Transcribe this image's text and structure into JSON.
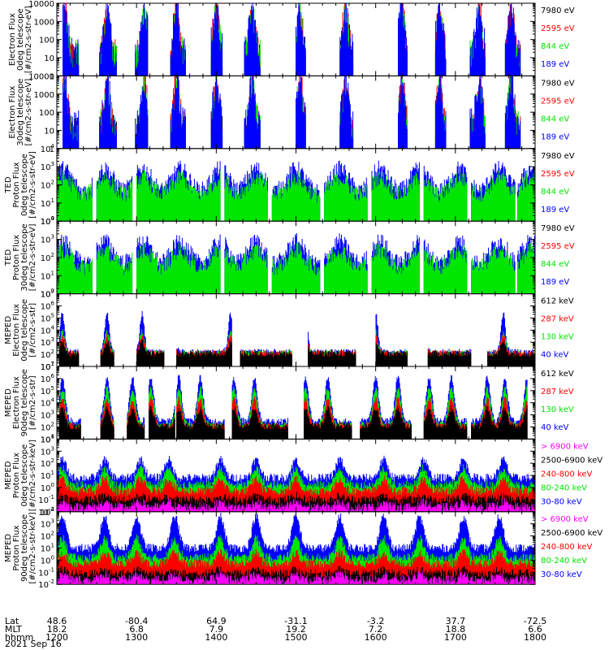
{
  "colors": {
    "blue": "#0000ff",
    "red": "#ff0000",
    "green": "#00e600",
    "black": "#000000",
    "magenta": "#ff00ff"
  },
  "chart_data": {
    "type": "line",
    "date": "2021 Sep 16",
    "time_axis": {
      "row_labels": [
        "Lat",
        "MLT",
        "hhmm"
      ],
      "ticks": [
        {
          "time": "1200",
          "lat": "48.6",
          "mlt": "18.2"
        },
        {
          "time": "1300",
          "lat": "-80.4",
          "mlt": "6.8"
        },
        {
          "time": "1400",
          "lat": "64.9",
          "mlt": "7.9"
        },
        {
          "time": "1500",
          "lat": "-31.1",
          "mlt": "19.2"
        },
        {
          "time": "1600",
          "lat": "-3.2",
          "mlt": "7.2"
        },
        {
          "time": "1700",
          "lat": "37.7",
          "mlt": "18.8"
        },
        {
          "time": "1800",
          "lat": "-72.5",
          "mlt": "6.6"
        }
      ]
    },
    "panels": [
      {
        "ylabel": [
          "Electron Flux",
          "0deg telescope",
          "[#/cm2-s-str-eV]"
        ],
        "ylim": [
          1,
          10000
        ],
        "decades": 4,
        "tick_labels": [
          "1",
          "10",
          "100",
          "1000",
          "10000"
        ],
        "plain_ticks": true,
        "legend": [
          {
            "label": "7980 eV",
            "color": "black"
          },
          {
            "label": "2595 eV",
            "color": "red"
          },
          {
            "label": "844 eV",
            "color": "green"
          },
          {
            "label": "189 eV",
            "color": "blue"
          }
        ],
        "series_order": [
          "black",
          "red",
          "green",
          "blue"
        ],
        "data_type": "electron_ted"
      },
      {
        "ylabel": [
          "Electron Flux",
          "30deg telescope",
          "[#/cm2-s-str-eV]"
        ],
        "ylim": [
          1,
          10000
        ],
        "decades": 4,
        "tick_labels": [
          "1",
          "10",
          "100",
          "1000",
          "10000"
        ],
        "plain_ticks": true,
        "legend": [
          {
            "label": "7980 eV",
            "color": "black"
          },
          {
            "label": "2595 eV",
            "color": "red"
          },
          {
            "label": "844 eV",
            "color": "green"
          },
          {
            "label": "189 eV",
            "color": "blue"
          }
        ],
        "series_order": [
          "black",
          "red",
          "green",
          "blue"
        ],
        "data_type": "electron_ted"
      },
      {
        "ylabel": [
          "TED",
          "Proton Flux",
          "0deg telescope",
          "[#/cm2-s-str-eV]"
        ],
        "ylim": [
          1,
          10000
        ],
        "decades": 4,
        "tick_labels": [
          "0",
          "1",
          "2",
          "3",
          "4"
        ],
        "plain_ticks": false,
        "legend": [
          {
            "label": "7980 eV",
            "color": "black"
          },
          {
            "label": "2595 eV",
            "color": "red"
          },
          {
            "label": "844 eV",
            "color": "green"
          },
          {
            "label": "189 eV",
            "color": "blue"
          }
        ],
        "series_order": [
          "blue",
          "green"
        ],
        "data_type": "proton_ted"
      },
      {
        "ylabel": [
          "TED",
          "Proton Flux",
          "30deg telescope",
          "[#/cm2-s-str-eV]"
        ],
        "ylim": [
          1,
          10000
        ],
        "decades": 4,
        "tick_labels": [
          "0",
          "1",
          "2",
          "3",
          "4"
        ],
        "plain_ticks": false,
        "legend": [
          {
            "label": "7980 eV",
            "color": "black"
          },
          {
            "label": "2595 eV",
            "color": "red"
          },
          {
            "label": "844 eV",
            "color": "green"
          },
          {
            "label": "189 eV",
            "color": "blue"
          }
        ],
        "series_order": [
          "blue",
          "green"
        ],
        "data_type": "proton_ted"
      },
      {
        "ylabel": [
          "MEPED",
          "Electron Flux",
          "0deg telescope",
          "[#/cm2-s-str]"
        ],
        "ylim": [
          10,
          10000000
        ],
        "decades": 6,
        "tick_labels": [
          "1",
          "2",
          "3",
          "4",
          "5",
          "6",
          "7"
        ],
        "plain_ticks": false,
        "legend": [
          {
            "label": "612 keV",
            "color": "black"
          },
          {
            "label": "287 keV",
            "color": "red"
          },
          {
            "label": "130 keV",
            "color": "green"
          },
          {
            "label": "40 keV",
            "color": "blue"
          }
        ],
        "series_order": [
          "blue",
          "green",
          "red",
          "black"
        ],
        "data_type": "electron_meped0"
      },
      {
        "ylabel": [
          "MEPED",
          "Electron Flux",
          "90deg telescope",
          "[#/cm2-s-str]"
        ],
        "ylim": [
          10,
          10000000
        ],
        "decades": 6,
        "tick_labels": [
          "1",
          "2",
          "3",
          "4",
          "5",
          "6",
          "7"
        ],
        "plain_ticks": false,
        "legend": [
          {
            "label": "612 keV",
            "color": "black"
          },
          {
            "label": "287 keV",
            "color": "red"
          },
          {
            "label": "130 keV",
            "color": "green"
          },
          {
            "label": "40 keV",
            "color": "blue"
          }
        ],
        "series_order": [
          "blue",
          "green",
          "red",
          "black"
        ],
        "data_type": "electron_meped90"
      },
      {
        "ylabel": [
          "MEPED",
          "Proton Flux",
          "0deg telescope",
          "[#/cm2-s-str-keV]"
        ],
        "ylim": [
          0.01,
          10000
        ],
        "decades": 6,
        "tick_labels": [
          "-2",
          "-1",
          "0",
          "1",
          "2",
          "3",
          "4"
        ],
        "plain_ticks": false,
        "legend": [
          {
            "label": "> 6900 keV",
            "color": "magenta"
          },
          {
            "label": "2500-6900 keV",
            "color": "black"
          },
          {
            "label": "240-800 keV",
            "color": "red"
          },
          {
            "label": "80-240 keV",
            "color": "green"
          },
          {
            "label": "30-80 keV",
            "color": "blue"
          }
        ],
        "series_order": [
          "blue",
          "green",
          "red",
          "black",
          "magenta"
        ],
        "data_type": "proton_meped0"
      },
      {
        "ylabel": [
          "MEPED",
          "Proton Flux",
          "90deg telescope",
          "[#/cm2-s-str-keV]"
        ],
        "ylim": [
          0.01,
          10000
        ],
        "decades": 6,
        "tick_labels": [
          "-2",
          "-1",
          "0",
          "1",
          "2",
          "3",
          "4"
        ],
        "plain_ticks": false,
        "legend": [
          {
            "label": "> 6900 keV",
            "color": "magenta"
          },
          {
            "label": "2500-6900 keV",
            "color": "black"
          },
          {
            "label": "240-800 keV",
            "color": "red"
          },
          {
            "label": "80-240 keV",
            "color": "green"
          },
          {
            "label": "30-80 keV",
            "color": "blue"
          }
        ],
        "series_order": [
          "blue",
          "green",
          "red",
          "black",
          "magenta"
        ],
        "data_type": "proton_meped90"
      }
    ],
    "regions": {
      "electron_ted": [
        [
          12.07,
          12.28
        ],
        [
          12.53,
          12.75
        ],
        [
          12.98,
          13.14
        ],
        [
          13.42,
          13.62
        ],
        [
          13.93,
          14.08
        ],
        [
          14.35,
          14.55
        ],
        [
          15.0,
          15.12
        ],
        [
          15.55,
          15.72
        ],
        [
          16.28,
          16.4
        ],
        [
          16.75,
          16.88
        ],
        [
          17.18,
          17.38
        ],
        [
          17.62,
          17.82
        ]
      ],
      "proton_ted": [
        [
          12.0,
          12.45
        ],
        [
          12.5,
          12.95
        ],
        [
          13.0,
          13.5
        ],
        [
          13.5,
          14.05
        ],
        [
          14.1,
          14.65
        ],
        [
          14.7,
          15.3
        ],
        [
          15.35,
          15.9
        ],
        [
          15.95,
          16.55
        ],
        [
          16.6,
          17.15
        ],
        [
          17.2,
          17.75
        ],
        [
          17.78,
          18.0
        ]
      ],
      "electron_meped0": [
        [
          12.03,
          12.28
        ],
        [
          12.55,
          12.72
        ],
        [
          13.0,
          13.35
        ],
        [
          13.5,
          14.2
        ],
        [
          14.3,
          14.95
        ],
        [
          15.15,
          15.75
        ],
        [
          16.0,
          16.4
        ],
        [
          16.65,
          17.2
        ],
        [
          17.4,
          18.0
        ]
      ],
      "electron_meped90": [
        [
          12.03,
          12.3
        ],
        [
          12.55,
          12.72
        ],
        [
          12.88,
          13.1
        ],
        [
          13.15,
          13.48
        ],
        [
          13.5,
          14.1
        ],
        [
          14.2,
          14.9
        ],
        [
          15.1,
          15.7
        ],
        [
          15.8,
          16.45
        ],
        [
          16.6,
          17.15
        ],
        [
          17.2,
          17.9
        ]
      ],
      "proton_meped0": [
        [
          12.0,
          18.0
        ]
      ],
      "proton_meped90": [
        [
          12.0,
          18.0
        ]
      ]
    },
    "peaks": {
      "electron_ted": [
        12.1,
        12.63,
        13.1,
        13.5,
        14.0,
        14.45,
        15.05,
        15.62,
        16.33,
        16.8,
        17.3,
        17.7
      ],
      "proton_ted": [
        12.08,
        12.6,
        13.08,
        13.55,
        14.05,
        14.5,
        15.0,
        15.55,
        16.05,
        16.55,
        17.05,
        17.55,
        17.95
      ],
      "electron_meped0": [
        12.07,
        12.63,
        13.07,
        13.45,
        14.18,
        15.12,
        16.0,
        16.6,
        17.6
      ],
      "electron_meped90": [
        12.07,
        12.63,
        12.95,
        13.18,
        13.53,
        13.8,
        14.22,
        14.48,
        15.12,
        15.4,
        16.0,
        16.28,
        16.67,
        16.95,
        17.4,
        17.62,
        17.9
      ],
      "proton_meped0": [
        12.07,
        12.6,
        13.05,
        13.4,
        14.05,
        14.5,
        15.0,
        15.55,
        16.1,
        16.6,
        17.1,
        17.6
      ],
      "proton_meped90": [
        12.07,
        12.6,
        13.0,
        13.48,
        14.05,
        14.5,
        15.0,
        15.55,
        16.1,
        16.55,
        17.1,
        17.55
      ]
    }
  }
}
